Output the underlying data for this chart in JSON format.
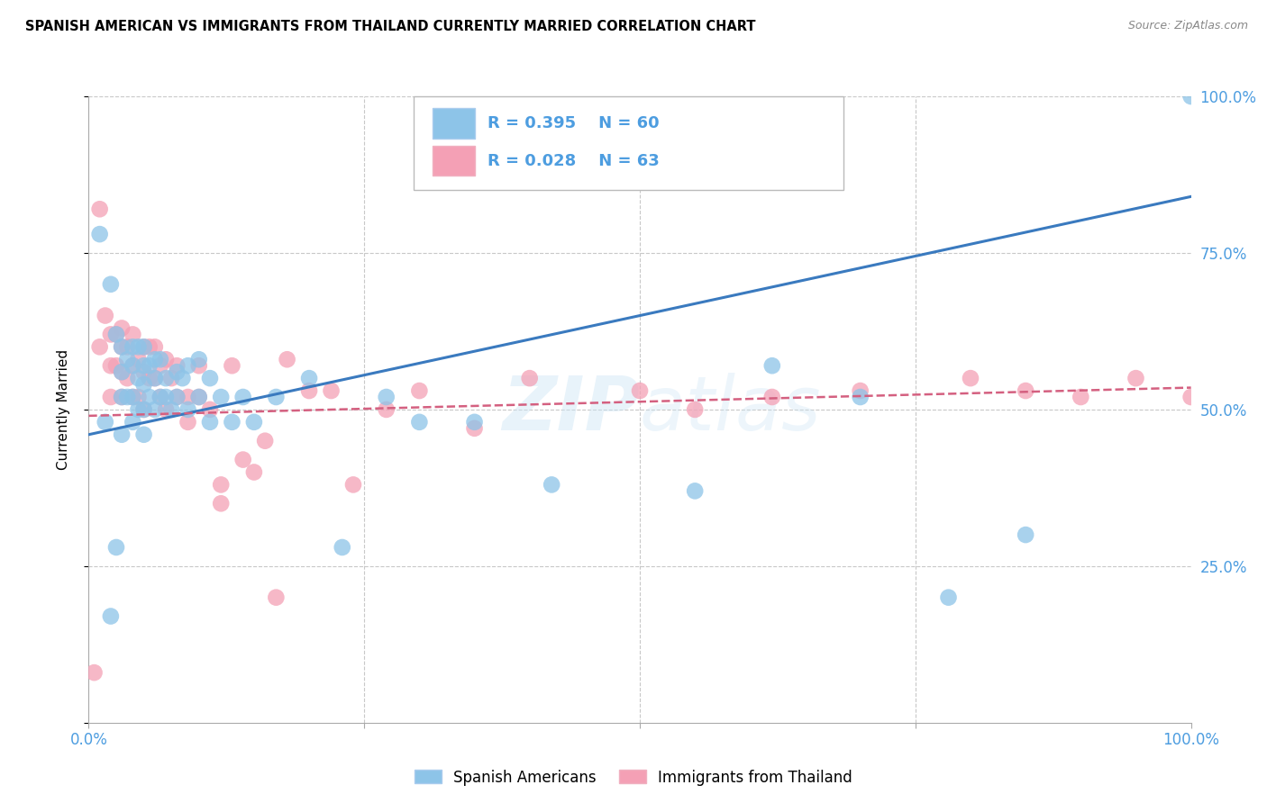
{
  "title": "SPANISH AMERICAN VS IMMIGRANTS FROM THAILAND CURRENTLY MARRIED CORRELATION CHART",
  "source": "Source: ZipAtlas.com",
  "ylabel": "Currently Married",
  "xlim": [
    0,
    1
  ],
  "ylim": [
    0,
    1
  ],
  "watermark": "ZIPatlas",
  "legend_r1": "R = 0.395",
  "legend_n1": "N = 60",
  "legend_r2": "R = 0.028",
  "legend_n2": "N = 63",
  "legend_label1": "Spanish Americans",
  "legend_label2": "Immigrants from Thailand",
  "color_blue": "#8dc4e8",
  "color_pink": "#f4a0b5",
  "line_blue": "#3a7abf",
  "line_pink": "#d46080",
  "background": "#ffffff",
  "grid_color": "#c8c8c8",
  "tick_color": "#4d9de0",
  "blue_scatter_x": [
    0.01,
    0.015,
    0.02,
    0.02,
    0.025,
    0.025,
    0.03,
    0.03,
    0.03,
    0.03,
    0.035,
    0.035,
    0.04,
    0.04,
    0.04,
    0.04,
    0.045,
    0.045,
    0.045,
    0.05,
    0.05,
    0.05,
    0.05,
    0.05,
    0.055,
    0.055,
    0.06,
    0.06,
    0.06,
    0.065,
    0.065,
    0.07,
    0.07,
    0.075,
    0.08,
    0.08,
    0.085,
    0.09,
    0.09,
    0.1,
    0.1,
    0.11,
    0.11,
    0.12,
    0.13,
    0.14,
    0.15,
    0.17,
    0.2,
    0.23,
    0.27,
    0.3,
    0.35,
    0.42,
    0.55,
    0.62,
    0.7,
    0.78,
    0.85,
    1.0
  ],
  "blue_scatter_y": [
    0.78,
    0.48,
    0.7,
    0.17,
    0.62,
    0.28,
    0.6,
    0.56,
    0.52,
    0.46,
    0.58,
    0.52,
    0.6,
    0.57,
    0.52,
    0.48,
    0.6,
    0.55,
    0.5,
    0.6,
    0.57,
    0.54,
    0.5,
    0.46,
    0.57,
    0.52,
    0.58,
    0.55,
    0.5,
    0.58,
    0.52,
    0.55,
    0.52,
    0.5,
    0.56,
    0.52,
    0.55,
    0.57,
    0.5,
    0.58,
    0.52,
    0.55,
    0.48,
    0.52,
    0.48,
    0.52,
    0.48,
    0.52,
    0.55,
    0.28,
    0.52,
    0.48,
    0.48,
    0.38,
    0.37,
    0.57,
    0.52,
    0.2,
    0.3,
    1.0
  ],
  "pink_scatter_x": [
    0.005,
    0.01,
    0.01,
    0.015,
    0.02,
    0.02,
    0.02,
    0.025,
    0.025,
    0.03,
    0.03,
    0.03,
    0.03,
    0.035,
    0.035,
    0.04,
    0.04,
    0.04,
    0.045,
    0.045,
    0.05,
    0.05,
    0.05,
    0.055,
    0.055,
    0.06,
    0.06,
    0.065,
    0.065,
    0.07,
    0.07,
    0.075,
    0.08,
    0.08,
    0.09,
    0.09,
    0.1,
    0.1,
    0.11,
    0.12,
    0.12,
    0.13,
    0.14,
    0.15,
    0.16,
    0.17,
    0.18,
    0.2,
    0.22,
    0.24,
    0.27,
    0.3,
    0.35,
    0.4,
    0.5,
    0.55,
    0.62,
    0.7,
    0.8,
    0.85,
    0.9,
    0.95,
    1.0
  ],
  "pink_scatter_y": [
    0.08,
    0.82,
    0.6,
    0.65,
    0.62,
    0.57,
    0.52,
    0.62,
    0.57,
    0.63,
    0.6,
    0.56,
    0.52,
    0.6,
    0.55,
    0.62,
    0.57,
    0.52,
    0.58,
    0.52,
    0.6,
    0.56,
    0.5,
    0.6,
    0.55,
    0.6,
    0.55,
    0.57,
    0.52,
    0.58,
    0.5,
    0.55,
    0.57,
    0.52,
    0.52,
    0.48,
    0.57,
    0.52,
    0.5,
    0.38,
    0.35,
    0.57,
    0.42,
    0.4,
    0.45,
    0.2,
    0.58,
    0.53,
    0.53,
    0.38,
    0.5,
    0.53,
    0.47,
    0.55,
    0.53,
    0.5,
    0.52,
    0.53,
    0.55,
    0.53,
    0.52,
    0.55,
    0.52
  ],
  "blue_line_x": [
    0.0,
    1.0
  ],
  "blue_line_y": [
    0.46,
    0.84
  ],
  "pink_line_x": [
    0.0,
    1.0
  ],
  "pink_line_y": [
    0.49,
    0.535
  ]
}
